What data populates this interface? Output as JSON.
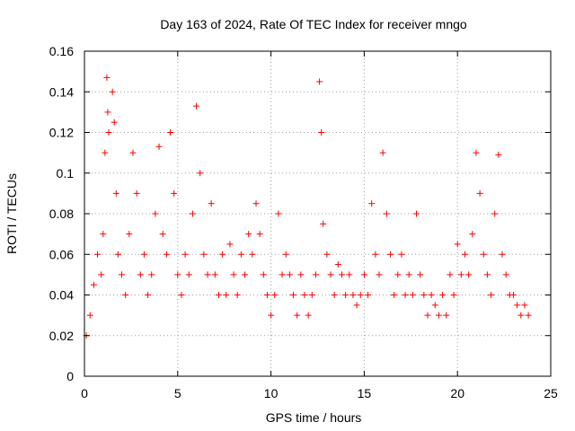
{
  "chart_data": {
    "type": "scatter",
    "title": "Day 163 of 2024, Rate Of TEC Index for receiver mngo",
    "xlabel": "GPS time / hours",
    "ylabel": "ROTI / TECUs",
    "xlim": [
      0,
      25
    ],
    "ylim": [
      0,
      0.16
    ],
    "xticks": [
      0,
      5,
      10,
      15,
      20,
      25
    ],
    "yticks": [
      0,
      0.02,
      0.04,
      0.06,
      0.08,
      0.1,
      0.12,
      0.14,
      0.16
    ],
    "xtick_labels": [
      "0",
      "5",
      "10",
      "15",
      "20",
      "25"
    ],
    "ytick_labels": [
      "0",
      "0.02",
      "0.04",
      "0.06",
      "0.08",
      "0.1",
      "0.12",
      "0.14",
      "0.16"
    ],
    "grid": true,
    "marker": "+",
    "color": "#ff0000",
    "series": [
      {
        "name": "ROTI",
        "x": [
          0.1,
          0.3,
          0.5,
          0.7,
          0.9,
          1.0,
          1.1,
          1.2,
          1.25,
          1.3,
          1.5,
          1.6,
          1.7,
          1.8,
          2.0,
          2.2,
          2.4,
          2.6,
          2.8,
          3.0,
          3.2,
          3.4,
          3.6,
          3.8,
          4.0,
          4.2,
          4.4,
          4.6,
          4.8,
          5.0,
          5.2,
          5.4,
          5.6,
          5.8,
          6.0,
          6.2,
          6.4,
          6.6,
          6.8,
          7.0,
          7.2,
          7.4,
          7.6,
          7.8,
          8.0,
          8.2,
          8.4,
          8.6,
          8.8,
          9.0,
          9.2,
          9.4,
          9.6,
          9.8,
          10.0,
          10.2,
          10.4,
          10.6,
          10.8,
          11.0,
          11.2,
          11.4,
          11.6,
          11.8,
          12.0,
          12.2,
          12.4,
          12.6,
          12.7,
          12.8,
          13.0,
          13.2,
          13.4,
          13.6,
          13.8,
          14.0,
          14.2,
          14.4,
          14.6,
          14.8,
          15.0,
          15.2,
          15.4,
          15.6,
          15.8,
          16.0,
          16.2,
          16.4,
          16.6,
          16.8,
          17.0,
          17.2,
          17.4,
          17.6,
          17.8,
          18.0,
          18.2,
          18.4,
          18.6,
          18.8,
          19.0,
          19.2,
          19.4,
          19.6,
          19.8,
          20.0,
          20.2,
          20.4,
          20.6,
          20.8,
          21.0,
          21.2,
          21.4,
          21.6,
          21.8,
          22.0,
          22.2,
          22.4,
          22.6,
          22.8,
          23.0,
          23.2,
          23.4,
          23.6,
          23.8
        ],
        "y": [
          0.02,
          0.03,
          0.045,
          0.06,
          0.05,
          0.07,
          0.11,
          0.147,
          0.13,
          0.12,
          0.14,
          0.125,
          0.09,
          0.06,
          0.05,
          0.04,
          0.07,
          0.11,
          0.09,
          0.05,
          0.06,
          0.04,
          0.05,
          0.08,
          0.113,
          0.07,
          0.06,
          0.12,
          0.09,
          0.05,
          0.04,
          0.06,
          0.05,
          0.08,
          0.133,
          0.1,
          0.06,
          0.05,
          0.085,
          0.05,
          0.04,
          0.06,
          0.04,
          0.065,
          0.05,
          0.04,
          0.06,
          0.05,
          0.07,
          0.06,
          0.085,
          0.07,
          0.05,
          0.04,
          0.03,
          0.04,
          0.08,
          0.05,
          0.06,
          0.05,
          0.04,
          0.03,
          0.05,
          0.04,
          0.03,
          0.04,
          0.05,
          0.145,
          0.12,
          0.075,
          0.06,
          0.05,
          0.04,
          0.055,
          0.05,
          0.04,
          0.05,
          0.04,
          0.035,
          0.04,
          0.05,
          0.04,
          0.085,
          0.06,
          0.05,
          0.11,
          0.08,
          0.06,
          0.04,
          0.05,
          0.06,
          0.04,
          0.05,
          0.04,
          0.08,
          0.05,
          0.04,
          0.03,
          0.04,
          0.035,
          0.03,
          0.04,
          0.03,
          0.05,
          0.04,
          0.065,
          0.05,
          0.06,
          0.05,
          0.07,
          0.11,
          0.09,
          0.06,
          0.05,
          0.04,
          0.08,
          0.109,
          0.06,
          0.05,
          0.04,
          0.04,
          0.035,
          0.03,
          0.035,
          0.03
        ]
      }
    ]
  }
}
